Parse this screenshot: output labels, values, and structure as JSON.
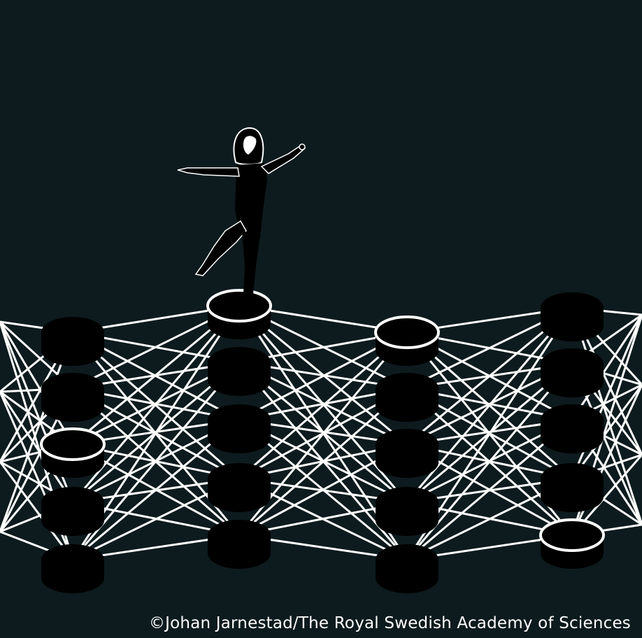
{
  "scene": {
    "background_color": "#0d1b1e",
    "line_color": "#ffffff",
    "node_fill": "#000000",
    "node_stroke": "#ffffff",
    "figure_color": "#000000"
  },
  "network": {
    "layers": [
      {
        "nodes": 5,
        "highlighted_node": 3
      },
      {
        "nodes": 5,
        "highlighted_node": 1
      },
      {
        "nodes": 5,
        "highlighted_node": 1
      },
      {
        "nodes": 5,
        "highlighted_node": 5
      }
    ],
    "figure_standing_on": {
      "layer": 2,
      "node": 1
    }
  },
  "credit": {
    "text": "©Johan Jarnestad/The Royal Swedish Academy of Sciences"
  }
}
